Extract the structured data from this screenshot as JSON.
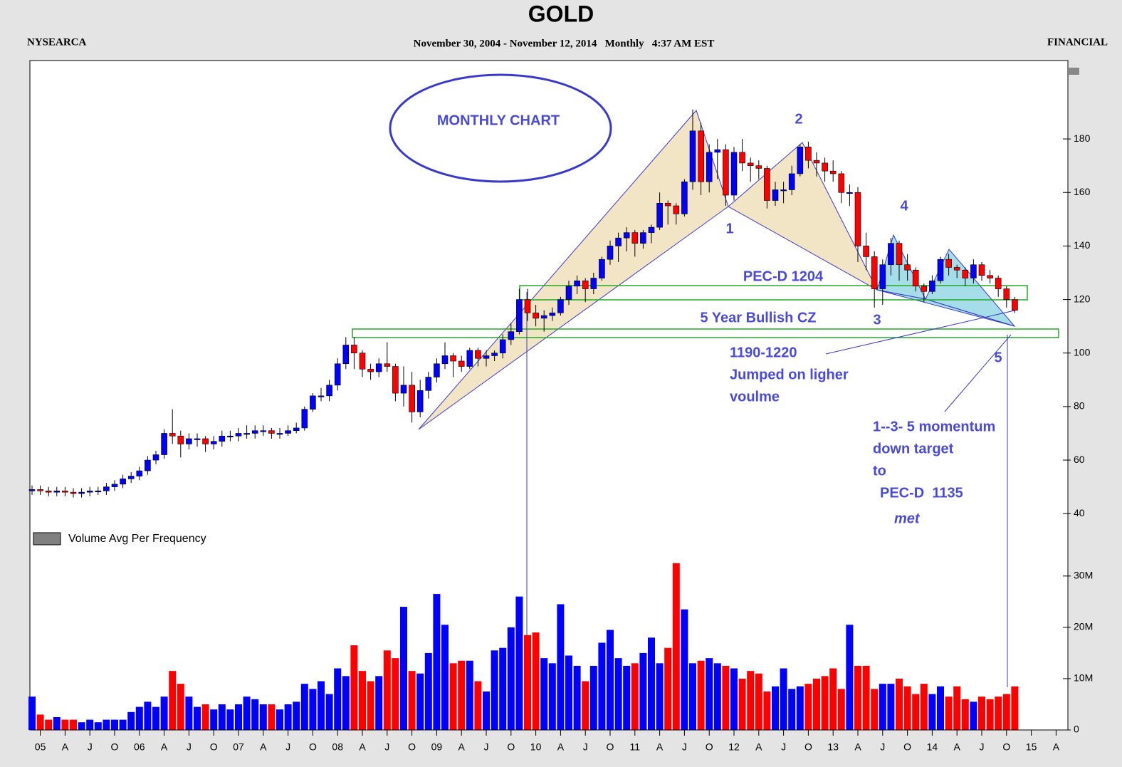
{
  "chart_data": {
    "type": "candlestick",
    "title": "GOLD",
    "exchange": "NYSEARCA",
    "subtitle": "November 30, 2004 - November 12, 2014   Monthly   4:37 AM EST",
    "sector": "FINANCIAL",
    "annotations": [
      "MONTHLY CHART",
      "1",
      "2",
      "3",
      "4",
      "5",
      "PEC-D 1204",
      "5 Year Bullish CZ",
      "1190-1220",
      "Jumped on ligher",
      "voulme",
      "1--3- 5 momentum",
      "down target",
      "to",
      "PEC-D  1135",
      "met"
    ],
    "up_color": "#0000ff",
    "down_color": "#ff0000",
    "categories": [
      null,
      "05",
      null,
      null,
      "A",
      null,
      null,
      "J",
      null,
      null,
      "O",
      null,
      null,
      "06",
      null,
      null,
      "A",
      null,
      null,
      "J",
      null,
      null,
      "O",
      null,
      null,
      "07",
      null,
      null,
      "A",
      null,
      null,
      "J",
      null,
      null,
      "O",
      null,
      null,
      "08",
      null,
      null,
      "A",
      null,
      null,
      "J",
      null,
      null,
      "O",
      null,
      null,
      "09",
      null,
      null,
      "A",
      null,
      null,
      "J",
      null,
      null,
      "O",
      null,
      null,
      "10",
      null,
      null,
      "A",
      null,
      null,
      "J",
      null,
      null,
      "O",
      null,
      null,
      "11",
      null,
      null,
      "A",
      null,
      null,
      "J",
      null,
      null,
      "O",
      null,
      null,
      "12",
      null,
      null,
      "A",
      null,
      null,
      "J",
      null,
      null,
      "O",
      null,
      null,
      "13",
      null,
      null,
      "A",
      null,
      null,
      "J",
      null,
      null,
      "O",
      null,
      null,
      "14",
      null,
      null,
      "A",
      null,
      null,
      "J",
      null,
      null,
      "O",
      null,
      null,
      "15",
      null,
      null,
      "A",
      null
    ],
    "open": [
      48.5,
      49,
      48.5,
      48,
      48.5,
      48,
      47.5,
      48,
      48.5,
      48.5,
      50,
      51,
      53,
      54,
      56,
      60,
      62,
      70,
      69,
      66,
      68,
      68,
      66,
      67,
      69,
      69,
      70,
      70,
      71,
      71,
      70,
      70,
      71,
      72,
      79,
      84,
      84,
      88,
      96,
      103,
      100,
      94,
      93,
      96,
      95,
      85,
      88,
      78,
      86,
      91,
      96,
      99,
      97,
      95,
      101,
      98,
      99,
      100,
      105,
      108,
      120,
      115,
      113,
      114,
      115,
      120,
      125,
      127,
      124,
      128,
      135,
      140,
      143,
      145,
      141,
      145,
      147,
      156,
      155,
      152,
      164,
      183,
      164,
      175,
      176,
      159,
      175,
      171,
      170,
      169,
      157,
      161,
      161,
      167,
      177,
      172,
      171,
      168,
      167,
      160,
      160,
      140,
      136,
      124,
      133,
      141,
      133,
      131,
      125,
      123,
      127,
      135,
      132,
      131,
      128,
      133,
      129,
      128,
      124,
      120,
      null,
      null,
      null,
      null,
      null,
      null
    ],
    "high": [
      50.5,
      50.5,
      50,
      50,
      50,
      49.5,
      49.5,
      50,
      50,
      51.5,
      52.5,
      54.5,
      55.5,
      57.5,
      61.5,
      63.5,
      71.5,
      79,
      71,
      70,
      70,
      69,
      69,
      71,
      71,
      72,
      73,
      73,
      73,
      72,
      72,
      73,
      74,
      80,
      85,
      87,
      90,
      98,
      106,
      106,
      101,
      96,
      98,
      104,
      96,
      95,
      93,
      90,
      93,
      98,
      104,
      100,
      99,
      102,
      102,
      101,
      101,
      107,
      111,
      124,
      124,
      118,
      116,
      117,
      121,
      127,
      129,
      128,
      130,
      136,
      142,
      145,
      147,
      146,
      146,
      148,
      160,
      157,
      156,
      165,
      191,
      186,
      178,
      180,
      178,
      177,
      180,
      173,
      172,
      170,
      164,
      164,
      170,
      178,
      179,
      175,
      173,
      172,
      168,
      163,
      162,
      145,
      138,
      135,
      143,
      142,
      137,
      132,
      126,
      129,
      136,
      137,
      133,
      132,
      135,
      134,
      131,
      129,
      125,
      121,
      null,
      null,
      null,
      null,
      null,
      null
    ],
    "low": [
      47,
      47,
      46.5,
      46.5,
      46.5,
      46,
      46,
      46.5,
      47,
      47,
      48.5,
      49.5,
      51.5,
      52.5,
      54.5,
      58.5,
      60.5,
      66,
      61,
      64,
      65,
      63,
      64,
      65,
      67,
      67,
      68,
      68,
      69,
      68,
      68,
      69,
      70,
      71,
      78,
      82,
      82,
      86,
      94,
      94,
      91,
      90,
      91,
      93,
      82,
      80,
      74,
      76,
      83,
      89,
      94,
      91,
      93,
      94,
      95,
      95,
      97,
      98,
      103,
      107,
      112,
      110,
      108,
      112,
      114,
      118,
      122,
      119,
      122,
      127,
      133,
      134,
      138,
      136,
      139,
      141,
      146,
      148,
      148,
      151,
      161,
      159,
      160,
      165,
      155,
      157,
      168,
      164,
      165,
      154,
      155,
      156,
      159,
      166,
      169,
      166,
      164,
      164,
      156,
      155,
      134,
      131,
      117,
      118,
      129,
      127,
      127,
      123,
      119,
      122,
      126,
      129,
      128,
      125,
      126,
      127,
      126,
      121,
      117,
      115,
      null,
      null,
      null,
      null,
      null,
      null
    ],
    "close": [
      49,
      48.5,
      48,
      48.5,
      48,
      47.5,
      48,
      48.5,
      48.5,
      50,
      51,
      53,
      54,
      56,
      60,
      62,
      70,
      69,
      66,
      68,
      68,
      66,
      67,
      69,
      69,
      70,
      70,
      71,
      71,
      70,
      70,
      71,
      72,
      79,
      84,
      84,
      88,
      96,
      103,
      100,
      94,
      93,
      96,
      95,
      85,
      88,
      78,
      86,
      91,
      96,
      99,
      97,
      95,
      101,
      98,
      99,
      100,
      105,
      108,
      120,
      115,
      113,
      114,
      115,
      120,
      125,
      127,
      124,
      128,
      135,
      140,
      143,
      145,
      141,
      145,
      147,
      156,
      155,
      152,
      164,
      183,
      164,
      175,
      176,
      159,
      175,
      171,
      170,
      169,
      157,
      161,
      161,
      167,
      177,
      172,
      171,
      168,
      167,
      160,
      160,
      140,
      136,
      124,
      133,
      141,
      133,
      131,
      125,
      123,
      127,
      135,
      132,
      131,
      128,
      133,
      129,
      128,
      124,
      120,
      116,
      null,
      null,
      null,
      null,
      null,
      null
    ],
    "ylim": [
      35,
      208.5
    ],
    "yticks": [
      40,
      60,
      80,
      100,
      120,
      140,
      160,
      180
    ],
    "volume": {
      "name": "Volume Avg Per Frequency",
      "color": "#808080",
      "values": [
        6.5,
        3,
        2,
        2.5,
        2,
        2,
        1.5,
        2,
        1.5,
        2,
        2,
        2,
        3.5,
        4.5,
        5.5,
        4.5,
        6.5,
        11.5,
        9,
        6.5,
        4.5,
        5,
        4,
        5,
        4,
        5,
        6.5,
        6,
        5,
        5,
        4,
        5,
        5.5,
        9,
        8,
        9.5,
        7,
        12,
        10.5,
        16.5,
        11.5,
        9.5,
        10.5,
        15.5,
        14,
        24,
        11.5,
        11,
        15,
        26.5,
        20.5,
        13,
        13.5,
        13.5,
        9.5,
        7.5,
        15.5,
        16,
        20,
        26,
        18.5,
        19,
        14,
        13,
        24.5,
        14.5,
        12.5,
        9.5,
        12.5,
        17,
        19.5,
        14,
        12.5,
        13,
        15,
        18,
        13,
        16,
        32.5,
        23.5,
        13,
        13.5,
        14,
        13,
        12.5,
        12,
        10,
        11.5,
        11,
        7.5,
        8.5,
        12,
        8,
        8.5,
        9,
        10,
        10.5,
        12,
        8,
        20.5,
        12.5,
        12.5,
        8,
        9,
        9,
        10,
        8.5,
        7,
        9,
        7,
        8.5,
        6.5,
        8.5,
        6,
        5.5,
        6.5,
        6,
        6.5,
        7,
        8.5,
        null,
        null,
        null,
        null,
        null,
        null
      ],
      "ylim": [
        0,
        34
      ],
      "yticks": [
        0,
        {
          "value": 10,
          "label": "10M"
        },
        {
          "value": 20,
          "label": "20M"
        },
        {
          "value": 30,
          "label": "30M"
        }
      ]
    }
  }
}
